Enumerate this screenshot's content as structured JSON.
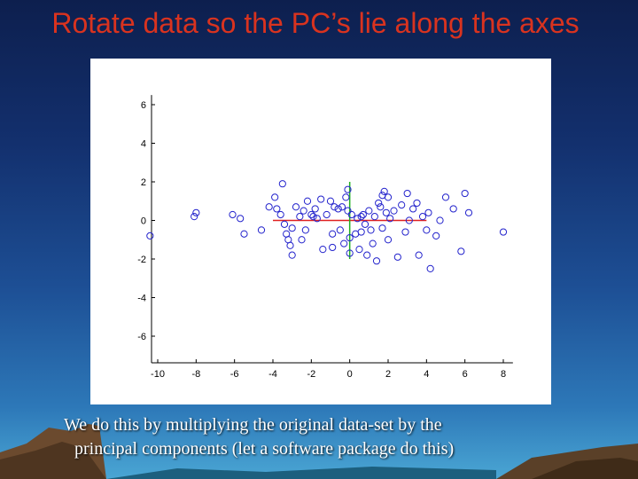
{
  "slide": {
    "title": "Rotate data so the PC’s lie along the axes",
    "caption_line1": "We do this by multiplying the original data-set by the",
    "caption_line2": "principal components (let a software package do this)"
  },
  "colors": {
    "title": "#d9331f",
    "points": "#2222cc",
    "pc1_line": "#e02020",
    "pc2_line": "#20b020"
  },
  "chart_data": {
    "type": "scatter",
    "title": "",
    "xlabel": "",
    "ylabel": "",
    "xlim": [
      -11,
      8.5
    ],
    "ylim": [
      -7.5,
      6.5
    ],
    "xticks": [
      -10,
      -8,
      -6,
      -4,
      -2,
      0,
      2,
      4,
      6,
      8
    ],
    "yticks": [
      6,
      4,
      2,
      0,
      -2,
      -4,
      -6
    ],
    "grid": false,
    "series": [
      {
        "name": "",
        "marker": "circle-open",
        "points": [
          [
            -10.4,
            -0.8
          ],
          [
            -8.1,
            0.2
          ],
          [
            -8.0,
            0.4
          ],
          [
            -6.1,
            0.3
          ],
          [
            -5.7,
            0.1
          ],
          [
            -5.5,
            -0.7
          ],
          [
            -4.6,
            -0.5
          ],
          [
            -4.2,
            0.7
          ],
          [
            -3.8,
            0.6
          ],
          [
            -3.9,
            1.2
          ],
          [
            -3.6,
            0.3
          ],
          [
            -3.5,
            1.9
          ],
          [
            -3.4,
            -0.2
          ],
          [
            -3.3,
            -0.7
          ],
          [
            -3.2,
            -1.0
          ],
          [
            -3.1,
            -1.3
          ],
          [
            -3.0,
            -1.8
          ],
          [
            -3.0,
            -0.4
          ],
          [
            -2.8,
            0.7
          ],
          [
            -2.6,
            0.2
          ],
          [
            -2.5,
            -1.0
          ],
          [
            -2.4,
            0.5
          ],
          [
            -2.3,
            -0.5
          ],
          [
            -2.2,
            1.0
          ],
          [
            -2.0,
            0.3
          ],
          [
            -1.9,
            0.2
          ],
          [
            -1.8,
            0.6
          ],
          [
            -1.7,
            0.1
          ],
          [
            -1.5,
            1.1
          ],
          [
            -1.4,
            -1.5
          ],
          [
            -1.2,
            0.3
          ],
          [
            -1.0,
            1.0
          ],
          [
            -0.9,
            -1.4
          ],
          [
            -0.8,
            0.7
          ],
          [
            -0.6,
            0.6
          ],
          [
            -0.5,
            -0.5
          ],
          [
            -0.4,
            0.7
          ],
          [
            -0.3,
            -1.2
          ],
          [
            -0.2,
            1.2
          ],
          [
            -0.1,
            0.5
          ],
          [
            0.0,
            -0.9
          ],
          [
            0.0,
            -1.7
          ],
          [
            -0.1,
            1.6
          ],
          [
            0.1,
            0.3
          ],
          [
            0.3,
            -0.7
          ],
          [
            0.4,
            0.1
          ],
          [
            0.5,
            -1.5
          ],
          [
            0.6,
            -0.6
          ],
          [
            0.7,
            0.3
          ],
          [
            0.8,
            -0.2
          ],
          [
            0.9,
            -1.8
          ],
          [
            1.0,
            0.5
          ],
          [
            1.1,
            -0.5
          ],
          [
            1.2,
            -1.2
          ],
          [
            1.3,
            0.2
          ],
          [
            1.4,
            -2.1
          ],
          [
            1.5,
            0.9
          ],
          [
            1.6,
            0.7
          ],
          [
            1.7,
            -0.4
          ],
          [
            1.8,
            1.5
          ],
          [
            1.9,
            0.4
          ],
          [
            2.0,
            -1.0
          ],
          [
            2.1,
            0.1
          ],
          [
            2.3,
            0.5
          ],
          [
            2.5,
            -1.9
          ],
          [
            2.7,
            0.8
          ],
          [
            2.9,
            -0.6
          ],
          [
            3.0,
            1.4
          ],
          [
            3.1,
            0.0
          ],
          [
            3.3,
            0.6
          ],
          [
            3.5,
            0.9
          ],
          [
            3.6,
            -1.8
          ],
          [
            3.8,
            0.2
          ],
          [
            4.0,
            -0.5
          ],
          [
            4.1,
            0.4
          ],
          [
            4.2,
            -2.5
          ],
          [
            4.5,
            -0.8
          ],
          [
            4.7,
            0.0
          ],
          [
            5.0,
            1.2
          ],
          [
            5.4,
            0.6
          ],
          [
            5.8,
            -1.6
          ],
          [
            6.0,
            1.4
          ],
          [
            6.2,
            0.4
          ],
          [
            8.0,
            -0.6
          ],
          [
            1.7,
            1.3
          ],
          [
            -0.9,
            -0.7
          ],
          [
            2.0,
            1.2
          ],
          [
            0.6,
            0.2
          ]
        ]
      }
    ],
    "pc_lines": [
      {
        "name": "",
        "color": "#e02020",
        "x": [
          -4,
          4
        ],
        "y": [
          0,
          0
        ]
      },
      {
        "name": "",
        "color": "#20b020",
        "x": [
          0,
          0
        ],
        "y": [
          -2,
          2
        ]
      }
    ]
  }
}
